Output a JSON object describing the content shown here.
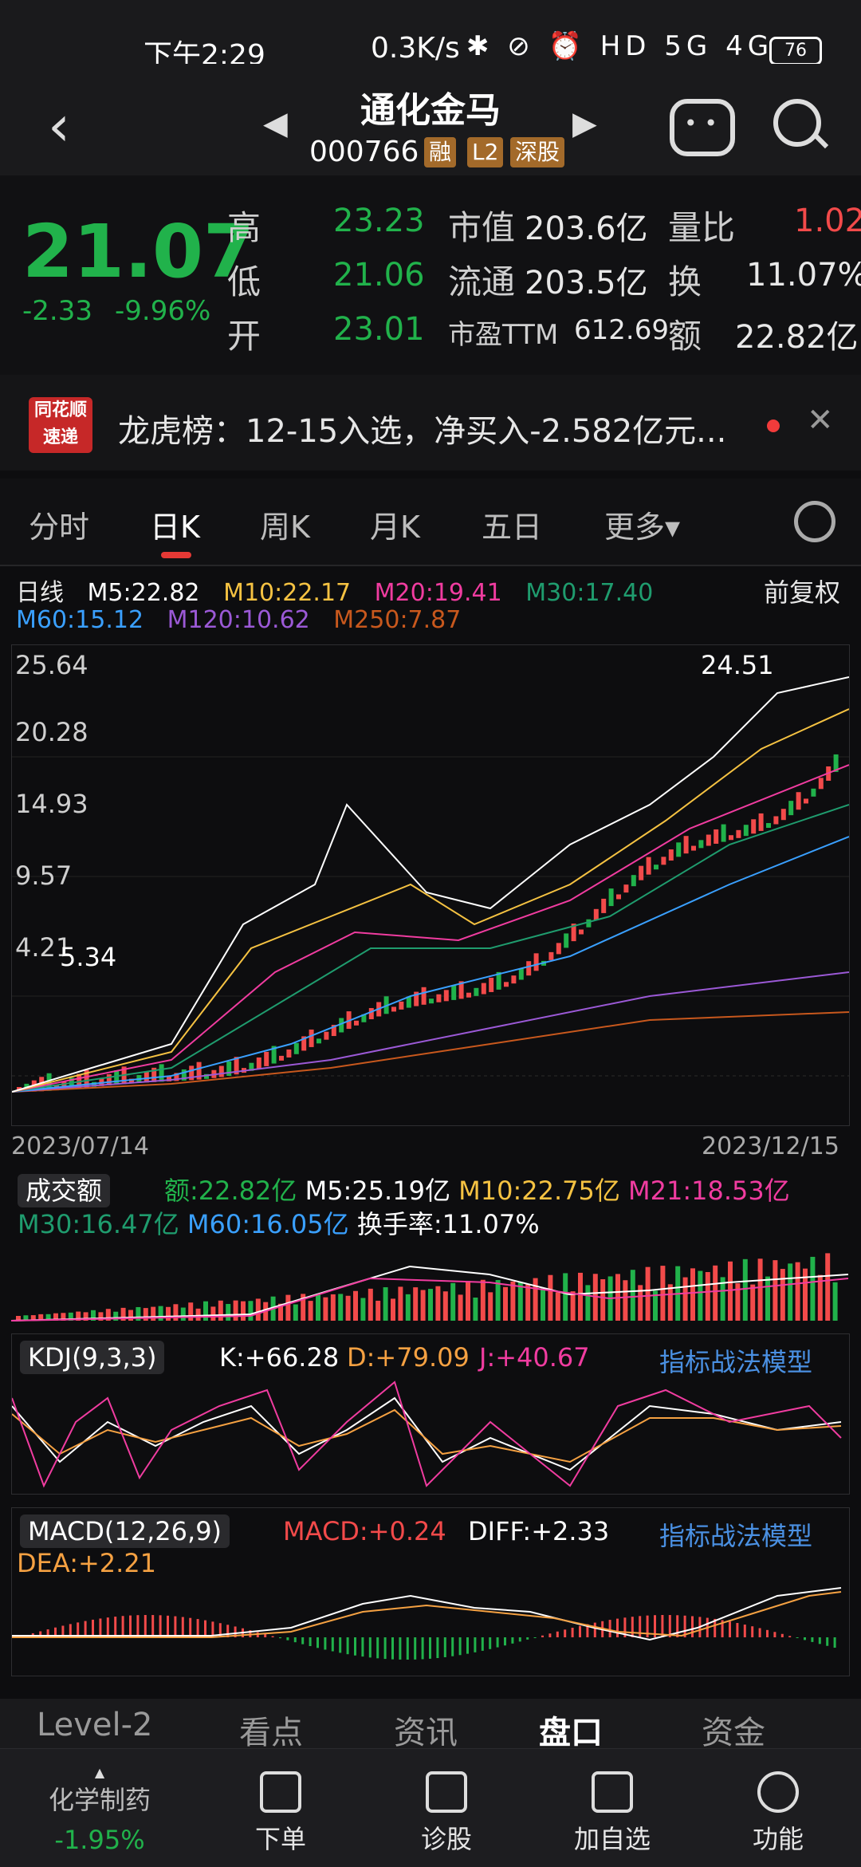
{
  "status_bar": {
    "time": "下午2:29",
    "speed": "0.3K/s",
    "icons": "✱ ⊘ ⏰ HD 5G 4G",
    "battery": "76"
  },
  "nav": {
    "title": "通化金马",
    "code": "000766",
    "tags": [
      "融",
      "L2",
      "深股"
    ]
  },
  "quote": {
    "price": "21.07",
    "change": "-2.33",
    "change_pct": "-9.96%",
    "rows": [
      {
        "label": "高",
        "value": "23.23",
        "label2": "市值",
        "value2": "203.6亿",
        "label3": "量比",
        "value3": "1.02"
      },
      {
        "label": "低",
        "value": "21.06",
        "label2": "流通",
        "value2": "203.5亿",
        "label3": "换",
        "value3": "11.07%"
      },
      {
        "label": "开",
        "value": "23.01",
        "label2": "市盈TTM",
        "value2": "612.69",
        "label3": "额",
        "value3": "22.82亿"
      }
    ]
  },
  "notice": {
    "logo": "同花顺速递",
    "text": "龙虎榜：12-15入选，净买入-2.582亿元..."
  },
  "tabs": [
    "分时",
    "日K",
    "周K",
    "月K",
    "五日",
    "更多▾"
  ],
  "kline": {
    "legend_row1": [
      "日线",
      "M5:22.82",
      "M10:22.17",
      "M20:19.41",
      "M30:17.40"
    ],
    "legend_row2": [
      "M60:15.12",
      "M120:10.62",
      "M250:7.87"
    ],
    "adjust": "前复权",
    "yticks": [
      "25.64",
      "20.28",
      "14.93",
      "9.57",
      "4.21"
    ],
    "max_label": "24.51",
    "min_label": "5.34",
    "date_start": "2023/07/14",
    "date_end": "2023/12/15",
    "colors": {
      "m5": "#ffffff",
      "m10": "#f5c242",
      "m20": "#f03ca0",
      "m30": "#1f9c6e",
      "m60": "#3aa0ff",
      "m120": "#9b59d6",
      "m250": "#c8581d"
    }
  },
  "volume": {
    "selector": "成交额",
    "legend": [
      "额:22.82亿",
      "M5:25.19亿",
      "M10:22.75亿",
      "M21:18.53亿",
      "M30:16.47亿",
      "M60:16.05亿",
      "换手率:11.07%"
    ]
  },
  "kdj": {
    "selector": "KDJ(9,3,3)",
    "k": "K:+66.28",
    "d": "D:+79.09",
    "j": "J:+40.67",
    "link": "指标战法模型"
  },
  "macd": {
    "selector": "MACD(12,26,9)",
    "macd": "MACD:+0.24",
    "diff": "DIFF:+2.33",
    "dea": "DEA:+2.21",
    "link": "指标战法模型"
  },
  "bottom_tabs": [
    "Level-2",
    "看点",
    "资讯",
    "盘口",
    "资金"
  ],
  "toolbar": {
    "sector": "化学制药",
    "sector_chg": "-1.95%",
    "items": [
      "下单",
      "诊股",
      "加自选",
      "功能"
    ]
  }
}
